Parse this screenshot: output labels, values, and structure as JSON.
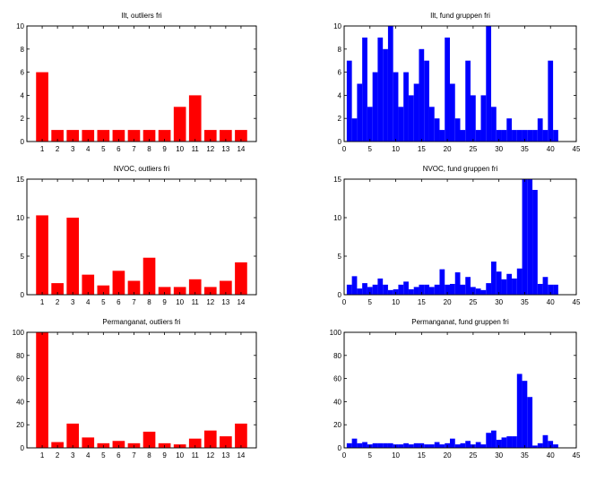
{
  "chart_data": [
    {
      "type": "bar",
      "title": "Ilt, outliers fri",
      "categories": [
        "1",
        "2",
        "3",
        "4",
        "5",
        "6",
        "7",
        "8",
        "9",
        "10",
        "11",
        "12",
        "13",
        "14"
      ],
      "values": [
        6,
        1,
        1,
        1,
        1,
        1,
        1,
        1,
        1,
        3,
        4,
        1,
        1,
        1
      ],
      "ylim": [
        0,
        10
      ],
      "yticks": [
        0,
        2,
        4,
        6,
        8,
        10
      ],
      "color": "#ff0000"
    },
    {
      "type": "bar",
      "title": "Ilt, fund gruppen fri",
      "x": [
        1,
        2,
        3,
        4,
        5,
        6,
        7,
        8,
        9,
        10,
        11,
        12,
        13,
        14,
        15,
        16,
        17,
        18,
        19,
        20,
        21,
        22,
        23,
        24,
        25,
        26,
        27,
        28,
        29,
        30,
        31,
        32,
        33,
        34,
        35,
        36,
        37,
        38,
        39,
        40,
        41
      ],
      "values": [
        7,
        2,
        5,
        9,
        3,
        6,
        9,
        8,
        10,
        6,
        3,
        6,
        4,
        5,
        8,
        7,
        3,
        2,
        1,
        9,
        5,
        2,
        1,
        7,
        4,
        1,
        4,
        10,
        3,
        1,
        1,
        2,
        1,
        1,
        1,
        1,
        1,
        2,
        1,
        7,
        1
      ],
      "xlim": [
        0,
        45
      ],
      "xticks": [
        0,
        5,
        10,
        15,
        20,
        25,
        30,
        35,
        40,
        45
      ],
      "ylim": [
        0,
        10
      ],
      "yticks": [
        0,
        2,
        4,
        6,
        8,
        10
      ],
      "color": "#0000ff"
    },
    {
      "type": "bar",
      "title": "NVOC, outliers fri",
      "categories": [
        "1",
        "2",
        "3",
        "4",
        "5",
        "6",
        "7",
        "8",
        "9",
        "10",
        "11",
        "12",
        "13",
        "14"
      ],
      "values": [
        10.3,
        1.5,
        10.0,
        2.6,
        1.2,
        3.1,
        1.8,
        4.8,
        1.0,
        1.0,
        2.0,
        1.0,
        1.8,
        4.2
      ],
      "ylim": [
        0,
        15
      ],
      "yticks": [
        0,
        5,
        10,
        15
      ],
      "color": "#ff0000"
    },
    {
      "type": "bar",
      "title": "NVOC, fund gruppen fri",
      "x": [
        1,
        2,
        3,
        4,
        5,
        6,
        7,
        8,
        9,
        10,
        11,
        12,
        13,
        14,
        15,
        16,
        17,
        18,
        19,
        20,
        21,
        22,
        23,
        24,
        25,
        26,
        27,
        28,
        29,
        30,
        31,
        32,
        33,
        34,
        35,
        36,
        37,
        38,
        39,
        40,
        41
      ],
      "values": [
        1.3,
        2.4,
        0.8,
        1.5,
        1.0,
        1.3,
        2.1,
        1.3,
        0.6,
        0.7,
        1.3,
        1.7,
        0.7,
        1.0,
        1.3,
        1.3,
        1.0,
        1.3,
        3.3,
        1.3,
        1.4,
        2.9,
        1.3,
        2.3,
        1.0,
        0.8,
        0.6,
        1.5,
        4.3,
        3.0,
        2.0,
        2.7,
        2.1,
        3.4,
        15.0,
        15.0,
        13.6,
        1.4,
        2.3,
        1.3,
        1.3
      ],
      "xlim": [
        0,
        45
      ],
      "xticks": [
        0,
        5,
        10,
        15,
        20,
        25,
        30,
        35,
        40,
        45
      ],
      "ylim": [
        0,
        15
      ],
      "yticks": [
        0,
        5,
        10,
        15
      ],
      "color": "#0000ff"
    },
    {
      "type": "bar",
      "title": "Permanganat, outliers fri",
      "categories": [
        "1",
        "2",
        "3",
        "4",
        "5",
        "6",
        "7",
        "8",
        "9",
        "10",
        "11",
        "12",
        "13",
        "14"
      ],
      "values": [
        100,
        5,
        21,
        9,
        4,
        6,
        4,
        14,
        4,
        3,
        8,
        15,
        10,
        21
      ],
      "ylim": [
        0,
        100
      ],
      "yticks": [
        0,
        20,
        40,
        60,
        80,
        100
      ],
      "color": "#ff0000"
    },
    {
      "type": "bar",
      "title": "Permanganat, fund gruppen fri",
      "x": [
        1,
        2,
        3,
        4,
        5,
        6,
        7,
        8,
        9,
        10,
        11,
        12,
        13,
        14,
        15,
        16,
        17,
        18,
        19,
        20,
        21,
        22,
        23,
        24,
        25,
        26,
        27,
        28,
        29,
        30,
        31,
        32,
        33,
        34,
        35,
        36,
        37,
        38,
        39,
        40,
        41
      ],
      "values": [
        4,
        8,
        4,
        5,
        3,
        4,
        4,
        4,
        4,
        3,
        3,
        4,
        3,
        4,
        4,
        3,
        3,
        5,
        3,
        4,
        8,
        3,
        4,
        6,
        3,
        5,
        3,
        13,
        15,
        7,
        9,
        10,
        10,
        64,
        58,
        44,
        2,
        4,
        11,
        6,
        3
      ],
      "xlim": [
        0,
        45
      ],
      "xticks": [
        0,
        5,
        10,
        15,
        20,
        25,
        30,
        35,
        40,
        45
      ],
      "ylim": [
        0,
        100
      ],
      "yticks": [
        0,
        20,
        40,
        60,
        80,
        100
      ],
      "color": "#0000ff"
    }
  ]
}
